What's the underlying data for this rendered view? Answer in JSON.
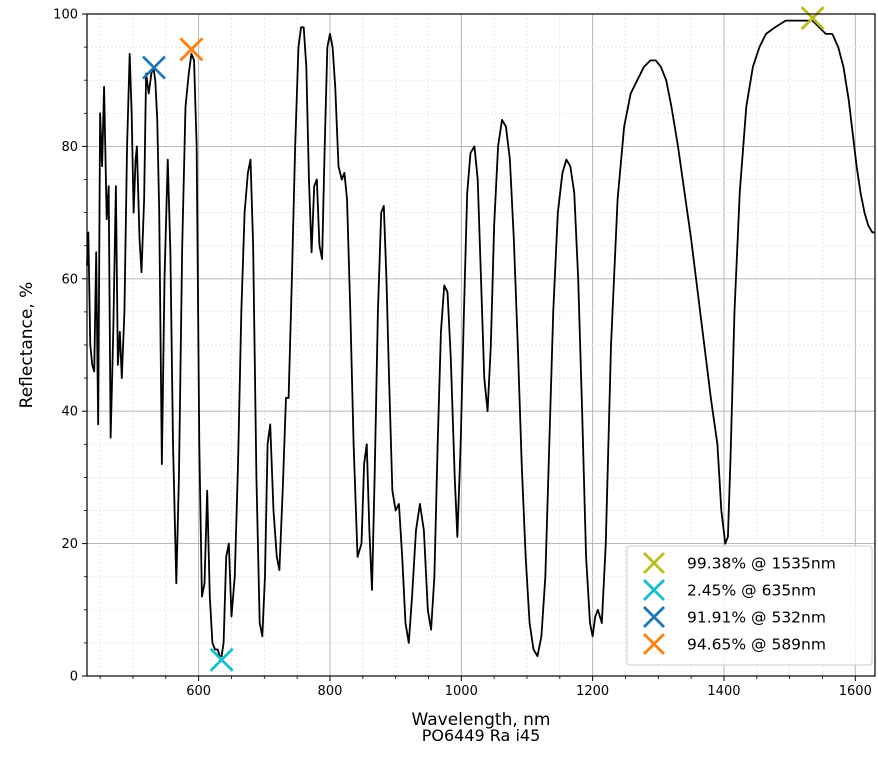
{
  "chart_data": {
    "type": "line",
    "title": "",
    "caption": "PO6449 Ra i45",
    "xlabel": "Wavelength, nm",
    "ylabel": "Reflectance, %",
    "xlim": [
      430,
      1630
    ],
    "ylim": [
      0,
      100
    ],
    "x_ticks": [
      600,
      800,
      1000,
      1200,
      1400,
      1600
    ],
    "y_ticks": [
      0,
      20,
      40,
      60,
      80,
      100
    ],
    "grid": "major and minor",
    "legend_position": "lower-right",
    "series": [
      {
        "color": "#000000",
        "points": [
          [
            430,
            62
          ],
          [
            432,
            67
          ],
          [
            435,
            50
          ],
          [
            438,
            47
          ],
          [
            441,
            46
          ],
          [
            444,
            64
          ],
          [
            447,
            38
          ],
          [
            450,
            85
          ],
          [
            453,
            77
          ],
          [
            456,
            89
          ],
          [
            460,
            69
          ],
          [
            463,
            74
          ],
          [
            466,
            36
          ],
          [
            470,
            52
          ],
          [
            474,
            74
          ],
          [
            477,
            47
          ],
          [
            480,
            52
          ],
          [
            483,
            45
          ],
          [
            487,
            55
          ],
          [
            491,
            80
          ],
          [
            495,
            94
          ],
          [
            498,
            85
          ],
          [
            501,
            70
          ],
          [
            504,
            78
          ],
          [
            506,
            80
          ],
          [
            510,
            66
          ],
          [
            513,
            61
          ],
          [
            517,
            72
          ],
          [
            520,
            91
          ],
          [
            524,
            88
          ],
          [
            528,
            91
          ],
          [
            531,
            92
          ],
          [
            534,
            90
          ],
          [
            537,
            84
          ],
          [
            540,
            70
          ],
          [
            544,
            32
          ],
          [
            548,
            60
          ],
          [
            553,
            78
          ],
          [
            557,
            64
          ],
          [
            561,
            35
          ],
          [
            566,
            14
          ],
          [
            570,
            30
          ],
          [
            575,
            65
          ],
          [
            580,
            86
          ],
          [
            585,
            91
          ],
          [
            589,
            94
          ],
          [
            593,
            93
          ],
          [
            597,
            80
          ],
          [
            601,
            35
          ],
          [
            605,
            12
          ],
          [
            609,
            14
          ],
          [
            613,
            28
          ],
          [
            617,
            12
          ],
          [
            621,
            5
          ],
          [
            625,
            4
          ],
          [
            629,
            4
          ],
          [
            632,
            3
          ],
          [
            635,
            3
          ],
          [
            638,
            5
          ],
          [
            642,
            18
          ],
          [
            646,
            20
          ],
          [
            650,
            9
          ],
          [
            655,
            15
          ],
          [
            660,
            32
          ],
          [
            665,
            55
          ],
          [
            670,
            70
          ],
          [
            675,
            76
          ],
          [
            679,
            78
          ],
          [
            683,
            65
          ],
          [
            688,
            30
          ],
          [
            693,
            8
          ],
          [
            697,
            6
          ],
          [
            701,
            15
          ],
          [
            705,
            35
          ],
          [
            709,
            38
          ],
          [
            714,
            25
          ],
          [
            719,
            18
          ],
          [
            723,
            16
          ],
          [
            728,
            28
          ],
          [
            733,
            42
          ],
          [
            737,
            42
          ],
          [
            742,
            60
          ],
          [
            747,
            80
          ],
          [
            752,
            95
          ],
          [
            756,
            98
          ],
          [
            760,
            98
          ],
          [
            764,
            92
          ],
          [
            768,
            75
          ],
          [
            772,
            64
          ],
          [
            776,
            74
          ],
          [
            780,
            75
          ],
          [
            784,
            65
          ],
          [
            788,
            63
          ],
          [
            792,
            80
          ],
          [
            796,
            95
          ],
          [
            800,
            97
          ],
          [
            804,
            95
          ],
          [
            808,
            89
          ],
          [
            813,
            77
          ],
          [
            818,
            75
          ],
          [
            822,
            76
          ],
          [
            826,
            72
          ],
          [
            831,
            55
          ],
          [
            836,
            35
          ],
          [
            842,
            18
          ],
          [
            848,
            20
          ],
          [
            852,
            32
          ],
          [
            856,
            35
          ],
          [
            860,
            22
          ],
          [
            864,
            13
          ],
          [
            868,
            30
          ],
          [
            873,
            55
          ],
          [
            878,
            70
          ],
          [
            882,
            71
          ],
          [
            886,
            60
          ],
          [
            890,
            45
          ],
          [
            895,
            28
          ],
          [
            900,
            25
          ],
          [
            905,
            26
          ],
          [
            910,
            18
          ],
          [
            915,
            8
          ],
          [
            920,
            5
          ],
          [
            925,
            12
          ],
          [
            931,
            22
          ],
          [
            937,
            26
          ],
          [
            943,
            22
          ],
          [
            949,
            10
          ],
          [
            954,
            7
          ],
          [
            959,
            15
          ],
          [
            964,
            35
          ],
          [
            969,
            52
          ],
          [
            974,
            59
          ],
          [
            979,
            58
          ],
          [
            984,
            48
          ],
          [
            990,
            30
          ],
          [
            994,
            21
          ],
          [
            999,
            35
          ],
          [
            1004,
            55
          ],
          [
            1009,
            73
          ],
          [
            1014,
            79
          ],
          [
            1020,
            80
          ],
          [
            1025,
            75
          ],
          [
            1030,
            60
          ],
          [
            1035,
            45
          ],
          [
            1040,
            40
          ],
          [
            1045,
            50
          ],
          [
            1050,
            68
          ],
          [
            1056,
            80
          ],
          [
            1062,
            84
          ],
          [
            1068,
            83
          ],
          [
            1074,
            78
          ],
          [
            1080,
            66
          ],
          [
            1086,
            50
          ],
          [
            1092,
            32
          ],
          [
            1098,
            18
          ],
          [
            1104,
            8
          ],
          [
            1110,
            4
          ],
          [
            1116,
            3
          ],
          [
            1122,
            6
          ],
          [
            1128,
            15
          ],
          [
            1134,
            35
          ],
          [
            1140,
            55
          ],
          [
            1147,
            70
          ],
          [
            1154,
            76
          ],
          [
            1160,
            78
          ],
          [
            1166,
            77
          ],
          [
            1172,
            73
          ],
          [
            1178,
            60
          ],
          [
            1184,
            40
          ],
          [
            1190,
            18
          ],
          [
            1196,
            8
          ],
          [
            1200,
            6
          ],
          [
            1204,
            9
          ],
          [
            1208,
            10
          ],
          [
            1214,
            8
          ],
          [
            1220,
            20
          ],
          [
            1228,
            50
          ],
          [
            1238,
            72
          ],
          [
            1248,
            83
          ],
          [
            1258,
            88
          ],
          [
            1268,
            90
          ],
          [
            1278,
            92
          ],
          [
            1288,
            93
          ],
          [
            1296,
            93
          ],
          [
            1304,
            92
          ],
          [
            1312,
            90
          ],
          [
            1320,
            86
          ],
          [
            1330,
            80
          ],
          [
            1340,
            73
          ],
          [
            1350,
            66
          ],
          [
            1360,
            58
          ],
          [
            1370,
            50
          ],
          [
            1380,
            42
          ],
          [
            1390,
            35
          ],
          [
            1396,
            25
          ],
          [
            1402,
            20
          ],
          [
            1406,
            21
          ],
          [
            1410,
            33
          ],
          [
            1416,
            55
          ],
          [
            1424,
            73
          ],
          [
            1434,
            86
          ],
          [
            1444,
            92
          ],
          [
            1454,
            95
          ],
          [
            1464,
            97
          ],
          [
            1478,
            98
          ],
          [
            1494,
            99
          ],
          [
            1510,
            99
          ],
          [
            1525,
            99
          ],
          [
            1535,
            99
          ],
          [
            1545,
            98
          ],
          [
            1555,
            97
          ],
          [
            1565,
            97
          ],
          [
            1574,
            95
          ],
          [
            1582,
            92
          ],
          [
            1590,
            87
          ],
          [
            1596,
            82
          ],
          [
            1602,
            77
          ],
          [
            1608,
            73
          ],
          [
            1614,
            70
          ],
          [
            1620,
            68
          ],
          [
            1626,
            67
          ],
          [
            1630,
            67
          ]
        ]
      }
    ],
    "markers": [
      {
        "label": "99.38% @ 1535nm",
        "x": 1535,
        "y": 99.38,
        "color": "#bcbd22"
      },
      {
        "label": "2.45% @ 635nm",
        "x": 635,
        "y": 2.45,
        "color": "#17becf"
      },
      {
        "label": "91.91% @ 532nm",
        "x": 532,
        "y": 91.91,
        "color": "#1f77b4"
      },
      {
        "label": "94.65% @ 589nm",
        "x": 589,
        "y": 94.65,
        "color": "#ff7f0e"
      }
    ]
  }
}
